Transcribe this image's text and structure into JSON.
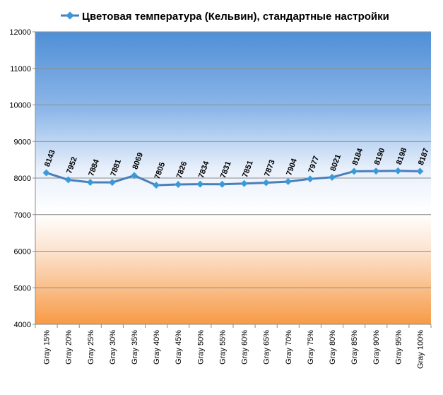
{
  "chart_data": {
    "type": "line",
    "title": "",
    "xlabel": "",
    "ylabel": "",
    "categories": [
      "Gray 15%",
      "Gray 20%",
      "Gray 25%",
      "Gray 30%",
      "Gray 35%",
      "Gray 40%",
      "Gray 45%",
      "Gray 50%",
      "Gray 55%",
      "Gray 60%",
      "Gray 65%",
      "Gray 70%",
      "Gray 75%",
      "Gray 80%",
      "Gray 85%",
      "Gray 90%",
      "Gray 95%",
      "Gray 100%"
    ],
    "series": [
      {
        "name": "Цветовая температура (Кельвин), стандартные настройки",
        "values": [
          8143,
          7952,
          7884,
          7881,
          8069,
          7805,
          7826,
          7834,
          7831,
          7851,
          7873,
          7904,
          7977,
          8021,
          8184,
          8190,
          8198,
          8187
        ],
        "color": "#4a7ebb"
      }
    ],
    "ylim": [
      4000,
      12000
    ],
    "yticks": [
      4000,
      5000,
      6000,
      7000,
      8000,
      9000,
      10000,
      11000,
      12000
    ],
    "grid": true,
    "legend_position": "top"
  }
}
